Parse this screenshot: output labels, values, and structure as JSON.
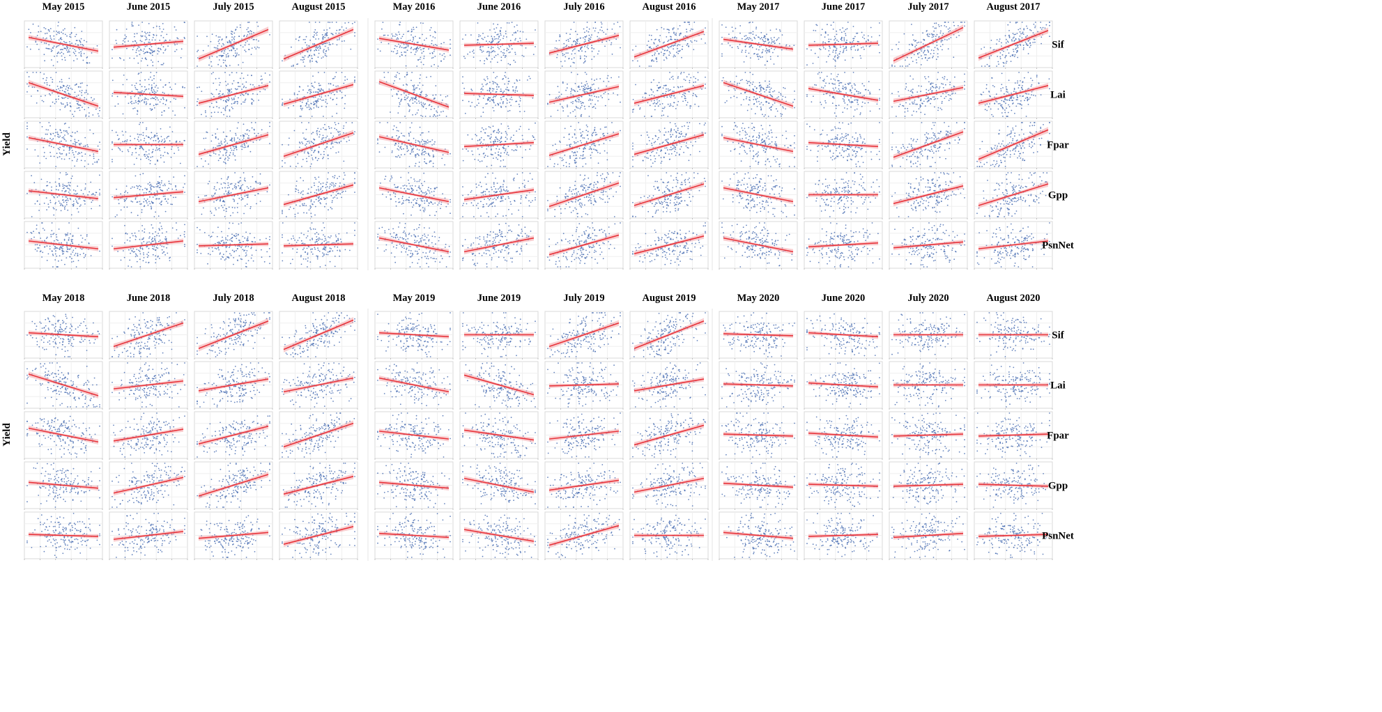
{
  "chart_data": {
    "type": "scatter",
    "description_layout": "small-multiples",
    "ylabel": "Yield",
    "variables": [
      "Sif",
      "Lai",
      "Fpar",
      "Gpp",
      "PsnNet"
    ],
    "months": [
      "May",
      "June",
      "July",
      "August"
    ],
    "years": [
      2015,
      2016,
      2017,
      2018,
      2019,
      2020
    ],
    "month_year_labels": [
      [
        "May 2015",
        "June 2015",
        "July 2015",
        "August 2015"
      ],
      [
        "May 2016",
        "June 2016",
        "July 2016",
        "August 2016"
      ],
      [
        "May 2017",
        "June 2017",
        "July 2017",
        "August 2017"
      ],
      [
        "May 2018",
        "June 2018",
        "July 2018",
        "August 2018"
      ],
      [
        "May 2019",
        "June 2019",
        "July 2019",
        "August 2019"
      ],
      [
        "May 2020",
        "June 2020",
        "July 2020",
        "August 2020"
      ]
    ],
    "regression_slopes": {
      "2015": [
        [
          -0.35,
          0.15,
          0.75,
          0.75
        ],
        [
          -0.6,
          -0.1,
          0.45,
          0.5
        ],
        [
          -0.35,
          0.0,
          0.5,
          0.6
        ],
        [
          -0.2,
          0.15,
          0.35,
          0.5
        ],
        [
          -0.2,
          0.2,
          0.05,
          0.05
        ]
      ],
      "2016": [
        [
          -0.3,
          0.05,
          0.45,
          0.65
        ],
        [
          -0.65,
          -0.05,
          0.4,
          0.45
        ],
        [
          -0.4,
          0.1,
          0.55,
          0.5
        ],
        [
          -0.35,
          0.25,
          0.6,
          0.55
        ],
        [
          -0.35,
          0.35,
          0.5,
          0.45
        ]
      ],
      "2017": [
        [
          -0.25,
          0.05,
          0.85,
          0.7
        ],
        [
          -0.6,
          -0.3,
          0.35,
          0.45
        ],
        [
          -0.35,
          -0.1,
          0.65,
          0.75
        ],
        [
          -0.35,
          0.0,
          0.45,
          0.55
        ],
        [
          -0.35,
          0.1,
          0.15,
          0.2
        ]
      ],
      "2018": [
        [
          -0.1,
          0.6,
          0.7,
          0.75
        ],
        [
          -0.55,
          0.2,
          0.3,
          0.35
        ],
        [
          -0.35,
          0.3,
          0.45,
          0.6
        ],
        [
          -0.15,
          0.4,
          0.55,
          0.45
        ],
        [
          -0.05,
          0.2,
          0.15,
          0.45
        ]
      ],
      "2019": [
        [
          -0.1,
          0.0,
          0.6,
          0.7
        ],
        [
          -0.35,
          -0.5,
          0.05,
          0.3
        ],
        [
          -0.2,
          -0.25,
          0.2,
          0.5
        ],
        [
          -0.15,
          -0.35,
          0.25,
          0.35
        ],
        [
          -0.1,
          -0.3,
          0.5,
          0.0
        ]
      ],
      "2020": [
        [
          -0.05,
          -0.1,
          0.0,
          0.0
        ],
        [
          -0.05,
          -0.1,
          0.0,
          0.0
        ],
        [
          -0.05,
          -0.1,
          0.05,
          0.05
        ],
        [
          -0.1,
          -0.05,
          0.05,
          -0.05
        ],
        [
          -0.15,
          0.05,
          0.1,
          0.05
        ]
      ]
    },
    "point_color": "#4a6fb3",
    "line_color": "#e8333a",
    "band_color": "#f4a6aa",
    "grid": true,
    "legend": "none"
  }
}
